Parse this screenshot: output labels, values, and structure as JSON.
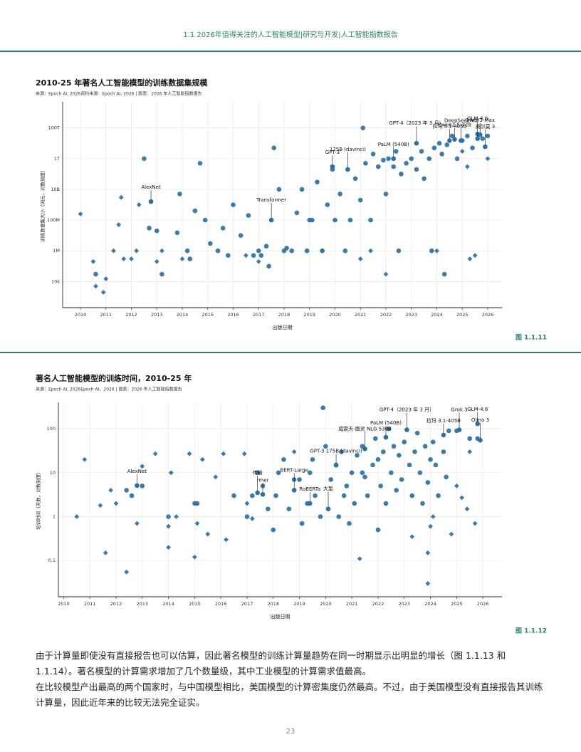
{
  "header": "1.1 2026年值得关注的人工智能模型|研究与开发|人工智能指数报告",
  "chart_data": [
    {
      "type": "scatter",
      "title": "2010-25 年著名人工智能模型的训练数据集规模",
      "source": "来源：Epoch AI, 2026资料来源：Epoch AI, 2026 | 图表：2026 年人工智能指数报告",
      "x_label": "出版日期",
      "y_label": "训练数据集大小（词元，对数刻度）",
      "yscale": "log",
      "grid": true,
      "xlim": [
        2009.3,
        2026.56
      ],
      "xticks": [
        2010,
        2011,
        2012,
        2013,
        2014,
        2015,
        2016,
        2017,
        2018,
        2019,
        2020,
        2021,
        2022,
        2023,
        2024,
        2025,
        2026
      ],
      "ylim": [
        200,
        5000000000000000.0
      ],
      "yticks": [
        {
          "value": 10000.0,
          "label": "10k"
        },
        {
          "value": 1000000.0,
          "label": "1M"
        },
        {
          "value": 100000000.0,
          "label": "100M"
        },
        {
          "value": 10000000000.0,
          "label": "10B"
        },
        {
          "value": 1000000000000.0,
          "label": "1T"
        },
        {
          "value": 100000000000000.0,
          "label": "100T"
        }
      ],
      "series": [
        {
          "marker": "circle",
          "color": "#2f6f9f",
          "x": [
            2010.6,
            2012.7,
            2013.0,
            2013.2,
            2013.8,
            2013.9,
            2014.2,
            2014.3,
            2014.5,
            2014.9,
            2015.1,
            2015.4,
            2015.6,
            2015.8,
            2016.0,
            2016.3,
            2016.6,
            2016.8,
            2017.0,
            2017.1,
            2017.3,
            2017.4,
            2017.6,
            2017.8,
            2018.0,
            2018.1,
            2018.3,
            2018.5,
            2018.7,
            2018.9,
            2019.1,
            2019.3,
            2019.5,
            2019.7,
            2019.9,
            2020.0,
            2020.2,
            2020.4,
            2020.6,
            2020.8,
            2021.0,
            2021.2,
            2021.4,
            2021.5,
            2021.7,
            2021.9,
            2022.0,
            2022.1,
            2022.3,
            2022.4,
            2022.6,
            2022.8,
            2023.0,
            2023.2,
            2023.4,
            2023.5,
            2023.7,
            2023.9,
            2024.1,
            2024.2,
            2024.4,
            2024.6,
            2024.8,
            2025.0,
            2025.2,
            2025.4,
            2025.6,
            2025.8,
            2026.0,
            2021.1,
            2023.8,
            2024.3,
            2022.5,
            2019.0,
            2012.5,
            2014.7
          ],
          "y": [
            30000.0,
            30000000.0,
            20000000.0,
            30000.0,
            15000000.0,
            5000000000.0,
            1000000.0,
            300000.0,
            400000000.0,
            100000000.0,
            3000000.0,
            1000000.0,
            30000000.0,
            500000.0,
            1000000000.0,
            10000000.0,
            200000000.0,
            500000.0,
            1000000.0,
            500000.0,
            2000000.0,
            100000.0,
            5000000000000.0,
            10000000000.0,
            1000000.0,
            1500000.0,
            1000000.0,
            300000000.0,
            10000000000.0,
            1000000.0,
            100000000.0,
            30000000000.0,
            1000000.0,
            1000000000.0,
            200000000000.0,
            100000000.0,
            5000000000.0,
            1000000.0,
            100000000.0,
            50000000000.0,
            2000000000.0,
            500000000000.0,
            100000000.0,
            2000000000000.0,
            300000000000.0,
            800000000000.0,
            5000000000.0,
            1000000000000.0,
            300000000000.0,
            3000000000000.0,
            100000000000.0,
            500000000000.0,
            1000000000000.0,
            200000000000.0,
            3000000000000.0,
            50000000000.0,
            1000000000000.0,
            5000000000000.0,
            10000000000000.0,
            2000000000000.0,
            8000000000000.0,
            30000000000000.0,
            1000000000000.0,
            15000000000000.0,
            30000000000000.0,
            5000000000000.0,
            40000000000000.0,
            20000000000000.0,
            30000000000000.0,
            100000000000000.0,
            1000000.0,
            30000.0,
            1000000.0,
            100000000.0,
            1000000000000.0,
            500000000000.0
          ]
        },
        {
          "marker": "diamond",
          "color": "#2f6f9f",
          "x": [
            2010.0,
            2010.5,
            2010.6,
            2010.9,
            2011.0,
            2011.3,
            2011.5,
            2011.6,
            2011.7,
            2012.0,
            2012.2,
            2012.3,
            2013.0,
            2013.2,
            2014.0,
            2016.5,
            2017.0,
            2019.5,
            2021.0,
            2021.4,
            2022.0,
            2024.0,
            2025.0,
            2025.2,
            2025.3,
            2025.5,
            2026.0
          ],
          "y": [
            250000000.0,
            200000.0,
            5000.0,
            2000.0,
            15000.0,
            1000000.0,
            50000000.0,
            3000000000.0,
            300000.0,
            300000.0,
            1000000.0,
            1000000000.0,
            200000.0,
            1000000.0,
            300000.0,
            500000.0,
            200000.0,
            1000000.0,
            300000.0,
            1000000.0,
            30000.0,
            1000000.0,
            3000000000000.0,
            300000000000.0,
            300000.0,
            500000.0,
            1000000000000.0
          ]
        }
      ],
      "annotations": [
        {
          "text": "AlexNet",
          "x": 2012.77,
          "y": 1600000000.0
        },
        {
          "text": "Transformer",
          "x": 2017.5,
          "y": 100000000.0
        },
        {
          "text": "GPT-3",
          "x": 2019.9,
          "y": 300000000000.0
        },
        {
          "text": "175B (davinci)",
          "x": 2020.5,
          "y": 200000000000.0
        },
        {
          "text": "PaLM (540B)",
          "x": 2022.3,
          "y": 1000000000000.0
        },
        {
          "text": "GPT-4（2023 年 3 月）",
          "x": 2023.2,
          "y": 10000000000000.0
        },
        {
          "text": "拉马 3.1-405B",
          "x": 2024.5,
          "y": 15000000000000.0
        },
        {
          "text": "DeepSeek-V3",
          "x": 2024.95,
          "y": 15000000000000.0
        },
        {
          "text": "Qwen3-Max",
          "x": 2025.7,
          "y": 36000000000000.0
        },
        {
          "text": "奥尔莫 3",
          "x": 2025.9,
          "y": 6000000000000.0
        },
        {
          "text": "Qwen2.5-72B",
          "x": 2024.7,
          "y": 18000000000000.0
        },
        {
          "text": "GLM-4.6",
          "x": 2025.6,
          "y": 20000000000000.0
        }
      ],
      "figure": "图 1.1.11"
    },
    {
      "type": "scatter",
      "title": "著名人工智能模型的训练时间，2010-25 年",
      "source": "来源：Epoch AI, 2026Epoch AI，2026 | 图表：2026 年人工智能指数报告",
      "x_label": "出版日期",
      "y_label": "培训时间（天数，对数刻度）",
      "yscale": "log",
      "grid": true,
      "xlim": [
        2009.8,
        2026.73
      ],
      "xticks": [
        2010,
        2011,
        2012,
        2013,
        2014,
        2015,
        2016,
        2017,
        2018,
        2019,
        2020,
        2021,
        2022,
        2023,
        2024,
        2025,
        2026
      ],
      "ylim": [
        0.015,
        400
      ],
      "yticks": [
        0.1,
        1,
        10,
        100
      ],
      "series": [
        {
          "marker": "circle",
          "color": "#2f6f9f",
          "x": [
            2012.4,
            2012.6,
            2013.0,
            2014.0,
            2015.0,
            2015.1,
            2016.5,
            2017.0,
            2017.2,
            2017.4,
            2017.6,
            2017.8,
            2018.0,
            2018.1,
            2018.2,
            2018.4,
            2018.6,
            2018.8,
            2019.0,
            2019.1,
            2019.3,
            2019.4,
            2019.5,
            2019.6,
            2019.8,
            2019.9,
            2020.0,
            2020.2,
            2020.4,
            2020.5,
            2020.6,
            2020.8,
            2020.9,
            2021.0,
            2021.1,
            2021.2,
            2021.4,
            2021.5,
            2021.6,
            2021.8,
            2021.9,
            2022.0,
            2022.1,
            2022.2,
            2022.3,
            2022.4,
            2022.5,
            2022.6,
            2022.7,
            2022.8,
            2022.9,
            2023.0,
            2023.2,
            2023.3,
            2023.4,
            2023.5,
            2023.6,
            2023.7,
            2023.8,
            2023.9,
            2024.0,
            2024.1,
            2024.2,
            2024.3,
            2024.5,
            2024.6,
            2024.7,
            2025.0,
            2025.5,
            2025.8,
            2021.4,
            2022.0,
            2020.7
          ],
          "y": [
            4,
            3,
            5,
            1,
            2,
            2,
            3,
            1,
            3,
            10,
            5,
            1.5,
            0.5,
            3,
            10,
            20,
            1.5,
            7,
            7,
            0.7,
            2,
            10,
            20,
            3,
            1,
            300,
            40,
            7,
            15,
            1,
            30,
            5,
            0.7,
            10,
            2,
            25,
            40,
            8,
            3,
            15,
            60,
            20,
            5,
            30,
            2,
            100,
            10,
            40,
            4,
            25,
            7,
            50,
            15,
            3,
            30,
            80,
            10,
            2,
            40,
            6,
            20,
            50,
            15,
            3,
            30,
            8,
            90,
            90,
            60,
            60,
            10,
            0.5,
            3
          ]
        },
        {
          "marker": "diamond",
          "color": "#2f6f9f",
          "x": [
            2010.5,
            2010.8,
            2011.4,
            2011.6,
            2011.8,
            2012.0,
            2012.4,
            2012.8,
            2013.0,
            2013.5,
            2014.0,
            2014.0,
            2014.1,
            2014.3,
            2014.8,
            2015.0,
            2015.1,
            2015.3,
            2015.5,
            2015.8,
            2016.1,
            2016.2,
            2016.9,
            2017.0,
            2017.2,
            2018.8,
            2021.3,
            2023.3,
            2023.9,
            2023.9,
            2024.0,
            2024.1,
            2024.8,
            2025.0,
            2025.2,
            2025.4,
            2025.7,
            2025.5
          ],
          "y": [
            1,
            20,
            1.8,
            0.15,
            4,
            2,
            0.055,
            0.7,
            14,
            27,
            0.6,
            0.2,
            10,
            1,
            27,
            0.12,
            0.7,
            20,
            0.4,
            8,
            27,
            0.3,
            27,
            2,
            0.9,
            30,
            0.11,
            0.35,
            0.15,
            0.03,
            0.6,
            1,
            0.4,
            5,
            2.7,
            1.5,
            0.7,
            30
          ]
        }
      ],
      "annotations": [
        {
          "text": "AlexNet",
          "x": 2012.8,
          "y": 5.1
        },
        {
          "text": "传输",
          "x": 2017.4,
          "y": 3.5
        },
        {
          "text": "rmer",
          "x": 2017.6,
          "y": 3.2
        },
        {
          "text": "BERT-Large",
          "x": 2018.8,
          "y": 4
        },
        {
          "text": "RoBERTa",
          "x": 2019.4,
          "y": 2
        },
        {
          "text": "大型",
          "x": 2020.1,
          "y": 1.5
        },
        {
          "text": "GPT-3 175B (davinci)",
          "x": 2020.4,
          "y": 14.8
        },
        {
          "text": "威震天-图灵 NLG 530B",
          "x": 2021.5,
          "y": 35
        },
        {
          "text": "PaLM (540B)",
          "x": 2022.3,
          "y": 64
        },
        {
          "text": "GPT-4（2023 年 3 月）",
          "x": 2023.1,
          "y": 95
        },
        {
          "text": "拉玛 3.1-405B",
          "x": 2024.5,
          "y": 72
        },
        {
          "text": "Grok 3",
          "x": 2025.1,
          "y": 95
        },
        {
          "text": "GLM-4.6",
          "x": 2025.8,
          "y": 130
        },
        {
          "text": "Olmo 3",
          "x": 2025.9,
          "y": 55
        }
      ],
      "figure": "图 1.1.12"
    }
  ],
  "paragraphs": [
    "由于计算量即使没有直接报告也可以估算，因此著名模型的训练计算量趋势在同一时期显示出明显的增长（图 1.1.13 和 1.1.14）。著名模型的计算需求增加了几个数量级，其中工业模型的计算需求值最高。",
    "在比较模型产出最高的两个国家时，与中国模型相比，美国模型的计算密集度仍然最高。不过，由于美国模型没有直接报告其训练计算量，因此近年来的比较无法完全证实。"
  ],
  "page_number": "23"
}
